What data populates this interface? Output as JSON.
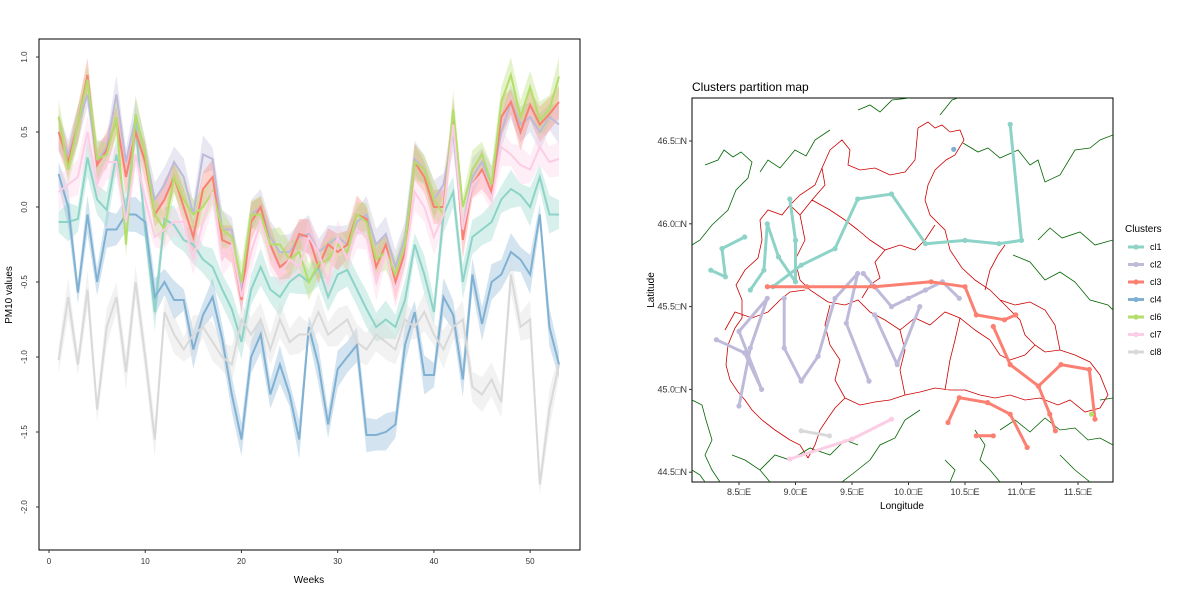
{
  "chart_data": [
    {
      "type": "line",
      "title": "",
      "xlabel": "Weeks",
      "ylabel": "PM10 values",
      "xlim": [
        0,
        55
      ],
      "ylim": [
        -2.3,
        1.1
      ],
      "xticks": [
        "0",
        "10",
        "20",
        "30",
        "40",
        "50"
      ],
      "yticks": [
        "1.0",
        "0.5",
        "0.0",
        "-0.5",
        "-1.0",
        "-1.5",
        "-2.0"
      ],
      "bands": true,
      "series": [
        {
          "color": "#8DD3C7",
          "values": [
            -0.1,
            -0.1,
            -0.08,
            0.33,
            0.05,
            -0.02,
            0.35,
            -0.05,
            0.55,
            -0.15,
            -0.7,
            -0.08,
            -0.12,
            -0.22,
            -0.25,
            -0.35,
            -0.4,
            -0.55,
            -0.68,
            -0.9,
            -0.55,
            -0.4,
            -0.55,
            -0.6,
            -0.5,
            -0.45,
            -0.5,
            -0.4,
            -0.6,
            -0.45,
            -0.42,
            -0.55,
            -0.68,
            -0.8,
            -0.75,
            -0.8,
            -0.62,
            -0.25,
            -0.45,
            -0.7,
            -0.05,
            0.1,
            -0.5,
            -0.2,
            -0.15,
            -0.1,
            0.05,
            0.12,
            0.08,
            0.0,
            0.2,
            -0.05,
            -0.05
          ]
        },
        {
          "color": "#BEBADA",
          "values": [
            0.5,
            0.35,
            0.55,
            0.75,
            0.3,
            0.4,
            0.75,
            0.3,
            0.6,
            0.35,
            0.05,
            0.15,
            0.3,
            0.2,
            -0.05,
            0.35,
            0.32,
            -0.15,
            -0.15,
            -0.58,
            -0.05,
            0.0,
            -0.2,
            -0.3,
            -0.3,
            -0.2,
            -0.18,
            -0.3,
            -0.25,
            -0.2,
            -0.25,
            -0.1,
            -0.05,
            -0.25,
            -0.18,
            -0.4,
            -0.2,
            0.32,
            0.25,
            0.05,
            0.15,
            0.5,
            -0.15,
            0.2,
            0.3,
            0.15,
            0.5,
            0.7,
            0.55,
            0.6,
            0.5,
            0.6,
            0.55
          ]
        },
        {
          "color": "#FB8072",
          "values": [
            0.5,
            0.3,
            0.55,
            0.88,
            0.28,
            0.38,
            0.58,
            0.2,
            0.5,
            0.3,
            -0.05,
            0.05,
            0.2,
            0.0,
            -0.2,
            0.12,
            0.2,
            -0.22,
            -0.25,
            -0.62,
            -0.1,
            0.0,
            -0.25,
            -0.4,
            -0.35,
            -0.18,
            -0.2,
            -0.4,
            -0.25,
            -0.3,
            -0.25,
            -0.05,
            -0.08,
            -0.4,
            -0.25,
            -0.5,
            -0.3,
            0.3,
            0.2,
            0.0,
            0.0,
            0.62,
            -0.22,
            0.15,
            0.25,
            0.1,
            0.6,
            0.7,
            0.5,
            0.68,
            0.55,
            0.62,
            0.7
          ]
        },
        {
          "color": "#80B1D3",
          "values": [
            0.22,
            0.0,
            -0.57,
            -0.05,
            -0.5,
            -0.15,
            -0.15,
            -0.05,
            -0.05,
            -0.1,
            -0.6,
            -0.5,
            -0.62,
            -0.62,
            -0.95,
            -0.72,
            -0.6,
            -0.88,
            -1.25,
            -1.55,
            -1.0,
            -0.85,
            -1.25,
            -1.05,
            -1.25,
            -1.55,
            -0.8,
            -1.05,
            -1.45,
            -1.08,
            -1.0,
            -0.92,
            -1.52,
            -1.52,
            -1.5,
            -1.45,
            -0.92,
            -0.7,
            -1.12,
            -1.12,
            -0.6,
            -0.72,
            -1.15,
            -0.45,
            -0.78,
            -0.5,
            -0.45,
            -0.3,
            -0.35,
            -0.45,
            -0.05,
            -0.8,
            -1.05
          ]
        },
        {
          "color": "#B3DE69",
          "values": [
            0.6,
            0.25,
            0.55,
            0.85,
            0.32,
            0.35,
            0.6,
            -0.25,
            0.62,
            0.35,
            -0.05,
            -0.15,
            0.2,
            0.05,
            -0.05,
            0.0,
            0.1,
            -0.15,
            -0.2,
            -0.5,
            -0.05,
            -0.05,
            -0.25,
            -0.25,
            -0.35,
            -0.3,
            -0.5,
            -0.38,
            -0.35,
            -0.25,
            -0.3,
            -0.05,
            -0.1,
            -0.35,
            -0.3,
            -0.45,
            -0.25,
            0.3,
            0.25,
            0.05,
            -0.05,
            0.65,
            0.0,
            0.25,
            0.35,
            0.15,
            0.7,
            0.88,
            0.6,
            0.8,
            0.58,
            0.65,
            0.87
          ]
        },
        {
          "color": "#FCCDE5",
          "values": [
            0.1,
            0.15,
            0.2,
            0.5,
            0.15,
            0.3,
            0.3,
            -0.1,
            0.35,
            0.05,
            -0.2,
            -0.15,
            -0.1,
            -0.1,
            -0.35,
            -0.1,
            0.1,
            -0.35,
            -0.25,
            -0.6,
            -0.3,
            -0.1,
            -0.3,
            -0.45,
            -0.35,
            -0.4,
            -0.2,
            -0.3,
            -0.5,
            -0.2,
            -0.35,
            -0.15,
            -0.2,
            -0.5,
            -0.3,
            -0.55,
            -0.35,
            0.1,
            0.0,
            -0.2,
            -0.05,
            0.55,
            -0.15,
            0.15,
            0.22,
            0.05,
            0.4,
            0.35,
            0.28,
            0.25,
            0.4,
            0.3,
            0.32
          ]
        },
        {
          "color": "#D9D9D9",
          "values": [
            -1.02,
            -0.6,
            -1.05,
            -0.55,
            -1.35,
            -0.8,
            -0.6,
            -1.1,
            -0.5,
            -1.0,
            -1.55,
            -0.7,
            -0.85,
            -0.95,
            -0.85,
            -0.8,
            -0.9,
            -1.0,
            -1.05,
            -0.75,
            -0.85,
            -0.75,
            -0.95,
            -0.75,
            -0.9,
            -0.85,
            -0.85,
            -0.7,
            -0.85,
            -0.8,
            -0.75,
            -0.9,
            -0.95,
            -0.85,
            -0.9,
            -0.95,
            -0.75,
            -0.8,
            -0.7,
            -0.85,
            -0.95,
            -0.8,
            -0.75,
            -1.2,
            -1.25,
            -1.15,
            -1.3,
            -0.45,
            -0.8,
            -0.75,
            -1.85,
            -1.35,
            -1.05
          ]
        }
      ]
    },
    {
      "type": "map",
      "title": "Clusters partition map",
      "xlabel": "Longitude",
      "ylabel": "Latitude",
      "xlim": [
        8.1,
        11.85
      ],
      "ylim": [
        44.4,
        46.82
      ],
      "xticks": [
        "8.5□E",
        "9.0□E",
        "9.5□E",
        "10.0□E",
        "10.5□E",
        "11.0□E",
        "11.5□E"
      ],
      "xtick_values": [
        8.5,
        9.0,
        9.5,
        10.0,
        10.5,
        11.0,
        11.5
      ],
      "yticks": [
        "46.5□N",
        "46.0□N",
        "45.5□N",
        "45.0□N",
        "44.5□N"
      ],
      "ytick_values": [
        46.5,
        46.0,
        45.5,
        45.0,
        44.5
      ],
      "legend": {
        "title": "Clusters",
        "position": "right",
        "items": [
          {
            "label": "cl1",
            "color": "#8DD3C7"
          },
          {
            "label": "cl2",
            "color": "#BEBADA"
          },
          {
            "label": "cl3",
            "color": "#FB8072"
          },
          {
            "label": "cl4",
            "color": "#80B1D3"
          },
          {
            "label": "cl6",
            "color": "#B3DE69"
          },
          {
            "label": "cl7",
            "color": "#FCCDE5"
          },
          {
            "label": "cl8",
            "color": "#D9D9D9"
          }
        ]
      },
      "boundary_colors": {
        "region": "#CC0000",
        "outer": "#006400"
      },
      "cluster_paths": [
        {
          "cluster": "cl1",
          "points": [
            [
              8.25,
              45.72
            ],
            [
              8.38,
              45.68
            ],
            [
              8.35,
              45.85
            ],
            [
              8.55,
              45.92
            ]
          ]
        },
        {
          "cluster": "cl1",
          "points": [
            [
              8.6,
              45.6
            ],
            [
              8.72,
              45.72
            ],
            [
              8.75,
              46.0
            ],
            [
              8.85,
              45.8
            ],
            [
              9.0,
              45.65
            ],
            [
              9.0,
              45.9
            ],
            [
              8.95,
              46.15
            ]
          ]
        },
        {
          "cluster": "cl1",
          "points": [
            [
              8.8,
              45.62
            ],
            [
              9.05,
              45.75
            ],
            [
              9.35,
              45.85
            ],
            [
              9.55,
              46.15
            ],
            [
              9.85,
              46.18
            ],
            [
              10.15,
              45.88
            ],
            [
              10.5,
              45.9
            ],
            [
              10.8,
              45.88
            ],
            [
              11.0,
              45.9
            ],
            [
              10.9,
              46.6
            ]
          ]
        },
        {
          "cluster": "cl2",
          "points": [
            [
              8.3,
              45.3
            ],
            [
              8.55,
              45.22
            ],
            [
              8.7,
              45.0
            ],
            [
              8.5,
              45.35
            ],
            [
              8.75,
              45.55
            ],
            [
              8.6,
              45.25
            ],
            [
              8.5,
              44.9
            ]
          ]
        },
        {
          "cluster": "cl2",
          "points": [
            [
              8.9,
              45.55
            ],
            [
              8.9,
              45.25
            ],
            [
              9.05,
              45.05
            ],
            [
              9.2,
              45.2
            ],
            [
              9.35,
              45.55
            ],
            [
              9.55,
              45.7
            ],
            [
              9.45,
              45.4
            ],
            [
              9.65,
              45.05
            ]
          ]
        },
        {
          "cluster": "cl2",
          "points": [
            [
              9.6,
              45.7
            ],
            [
              9.85,
              45.5
            ],
            [
              10.0,
              45.55
            ],
            [
              10.15,
              45.6
            ],
            [
              10.3,
              45.65
            ],
            [
              10.45,
              45.55
            ]
          ]
        },
        {
          "cluster": "cl2",
          "points": [
            [
              9.7,
              45.45
            ],
            [
              9.9,
              45.15
            ],
            [
              10.1,
              45.5
            ]
          ]
        },
        {
          "cluster": "cl3",
          "points": [
            [
              8.75,
              45.62
            ],
            [
              9.1,
              45.62
            ],
            [
              9.7,
              45.62
            ],
            [
              10.2,
              45.65
            ],
            [
              10.5,
              45.62
            ],
            [
              10.6,
              45.45
            ],
            [
              10.85,
              45.42
            ],
            [
              10.95,
              45.45
            ]
          ]
        },
        {
          "cluster": "cl3",
          "points": [
            [
              10.75,
              45.38
            ],
            [
              10.9,
              45.15
            ],
            [
              11.15,
              45.02
            ],
            [
              11.35,
              45.15
            ],
            [
              11.6,
              45.12
            ],
            [
              11.65,
              44.82
            ]
          ]
        },
        {
          "cluster": "cl3",
          "points": [
            [
              10.35,
              44.8
            ],
            [
              10.45,
              44.95
            ],
            [
              10.7,
              44.92
            ],
            [
              10.9,
              44.85
            ],
            [
              11.05,
              44.65
            ]
          ]
        },
        {
          "cluster": "cl3",
          "points": [
            [
              10.6,
              44.72
            ],
            [
              10.75,
              44.72
            ]
          ]
        },
        {
          "cluster": "cl3",
          "points": [
            [
              11.15,
              45.02
            ],
            [
              11.25,
              44.85
            ],
            [
              11.3,
              44.75
            ]
          ]
        },
        {
          "cluster": "cl4",
          "points": [
            [
              10.4,
              46.45
            ]
          ]
        },
        {
          "cluster": "cl6",
          "points": [
            [
              11.62,
              44.85
            ]
          ]
        },
        {
          "cluster": "cl7",
          "points": [
            [
              8.95,
              44.58
            ],
            [
              9.5,
              44.7
            ],
            [
              9.85,
              44.82
            ]
          ]
        },
        {
          "cluster": "cl8",
          "points": [
            [
              9.05,
              44.75
            ],
            [
              9.3,
              44.72
            ]
          ]
        }
      ]
    }
  ]
}
